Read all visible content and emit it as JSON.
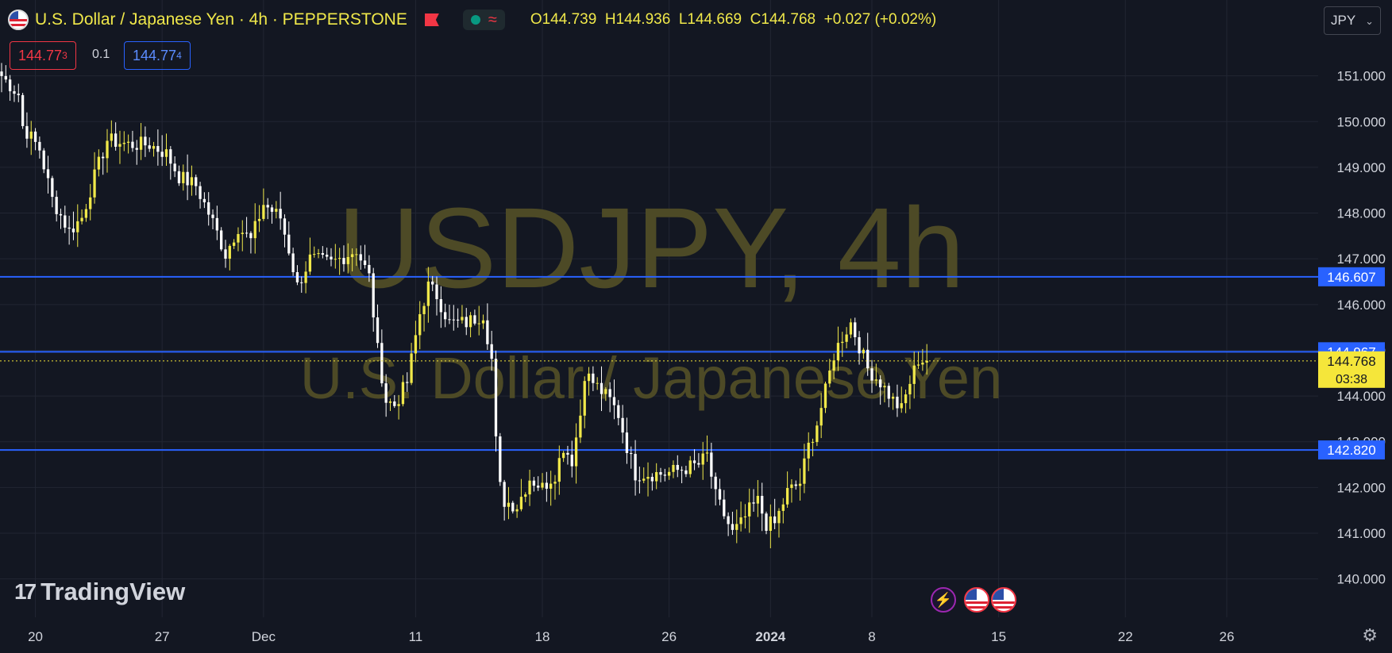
{
  "header": {
    "symbol_title": "U.S. Dollar / Japanese Yen · 4h · PEPPERSTONE",
    "ohlc": {
      "open_label": "O",
      "open": "144.739",
      "high_label": "H",
      "high": "144.936",
      "low_label": "L",
      "low": "144.669",
      "close_label": "C",
      "close": "144.768",
      "change": "+0.027 (+0.02%)"
    },
    "sell_price": "144.77",
    "sell_price_sup": "3",
    "spread": "0.1",
    "buy_price": "144.77",
    "buy_price_sup": "4",
    "currency": "JPY"
  },
  "watermark": {
    "symbol": "USDJPY, 4h",
    "description": "U.S. Dollar / Japanese Yen"
  },
  "branding": {
    "logo_text": "TradingView",
    "logo_mark": "17"
  },
  "colors": {
    "background": "#131722",
    "grid": "#222633",
    "candle_up": "#f0e84a",
    "candle_down": "#ffffff",
    "hline": "#2962ff",
    "last_price_bg": "#f5e63a",
    "axis_text": "#d1d4dc",
    "watermark": "#4d4a26"
  },
  "chart_data": {
    "type": "candlestick",
    "y_ticks": [
      "140.000",
      "141.000",
      "142.000",
      "143.000",
      "144.000",
      "145.000",
      "146.000",
      "147.000",
      "148.000",
      "149.000",
      "150.000",
      "151.000"
    ],
    "ylim": [
      139.16,
      152.66
    ],
    "x_ticks": [
      {
        "label": "20",
        "bar": 8
      },
      {
        "label": "27",
        "bar": 38
      },
      {
        "label": "Dec",
        "bar": 62
      },
      {
        "label": "11",
        "bar": 98
      },
      {
        "label": "18",
        "bar": 128
      },
      {
        "label": "26",
        "bar": 158
      },
      {
        "label": "2024",
        "bar": 182
      },
      {
        "label": "8",
        "bar": 206
      },
      {
        "label": "15",
        "bar": 236
      },
      {
        "label": "22",
        "bar": 266
      },
      {
        "label": "26",
        "bar": 290
      }
    ],
    "total_bars": 312,
    "horizontal_lines": [
      {
        "label": "146.607",
        "value": 146.607
      },
      {
        "label": "144.967",
        "value": 144.967
      },
      {
        "label": "142.820",
        "value": 142.82
      }
    ],
    "last_price": {
      "value": 144.768,
      "label": "144.768",
      "countdown": "03:38"
    },
    "anchors": [
      [
        0,
        151.0
      ],
      [
        4,
        150.6
      ],
      [
        5,
        149.9
      ],
      [
        9,
        149.4
      ],
      [
        12,
        148.3
      ],
      [
        16,
        147.6
      ],
      [
        19,
        147.9
      ],
      [
        22,
        148.8
      ],
      [
        25,
        149.6
      ],
      [
        30,
        149.5
      ],
      [
        35,
        149.5
      ],
      [
        39,
        149.3
      ],
      [
        42,
        148.8
      ],
      [
        46,
        148.6
      ],
      [
        50,
        147.8
      ],
      [
        53,
        147.1
      ],
      [
        56,
        147.7
      ],
      [
        59,
        147.4
      ],
      [
        62,
        148.2
      ],
      [
        66,
        147.9
      ],
      [
        68,
        147.2
      ],
      [
        70,
        146.4
      ],
      [
        73,
        147.0
      ],
      [
        78,
        146.9
      ],
      [
        84,
        147.2
      ],
      [
        87,
        146.6
      ],
      [
        89,
        145.0
      ],
      [
        91,
        143.9
      ],
      [
        93,
        143.8
      ],
      [
        96,
        144.3
      ],
      [
        99,
        145.8
      ],
      [
        101,
        146.4
      ],
      [
        103,
        146.2
      ],
      [
        106,
        145.6
      ],
      [
        110,
        145.6
      ],
      [
        114,
        145.8
      ],
      [
        116,
        144.8
      ],
      [
        117,
        143.0
      ],
      [
        118,
        142.0
      ],
      [
        119,
        141.7
      ],
      [
        122,
        141.6
      ],
      [
        125,
        142.2
      ],
      [
        128,
        142.0
      ],
      [
        131,
        142.3
      ],
      [
        133,
        142.9
      ],
      [
        135,
        142.6
      ],
      [
        137,
        143.6
      ],
      [
        138,
        144.5
      ],
      [
        140,
        144.3
      ],
      [
        144,
        143.9
      ],
      [
        146,
        143.6
      ],
      [
        148,
        142.9
      ],
      [
        150,
        142.3
      ],
      [
        153,
        142.3
      ],
      [
        157,
        142.3
      ],
      [
        161,
        142.4
      ],
      [
        165,
        142.5
      ],
      [
        167,
        142.7
      ],
      [
        169,
        141.8
      ],
      [
        171,
        141.4
      ],
      [
        173,
        141.0
      ],
      [
        175,
        141.2
      ],
      [
        177,
        141.5
      ],
      [
        179,
        141.7
      ],
      [
        181,
        141.2
      ],
      [
        183,
        141.2
      ],
      [
        186,
        141.9
      ],
      [
        189,
        142.1
      ],
      [
        191,
        142.9
      ],
      [
        193,
        143.4
      ],
      [
        195,
        144.1
      ],
      [
        197,
        144.9
      ],
      [
        199,
        145.3
      ],
      [
        201,
        145.6
      ],
      [
        203,
        145.1
      ],
      [
        205,
        144.6
      ],
      [
        208,
        144.3
      ],
      [
        211,
        143.9
      ],
      [
        213,
        143.7
      ],
      [
        215,
        144.3
      ],
      [
        217,
        144.8
      ],
      [
        219,
        144.77
      ]
    ]
  }
}
